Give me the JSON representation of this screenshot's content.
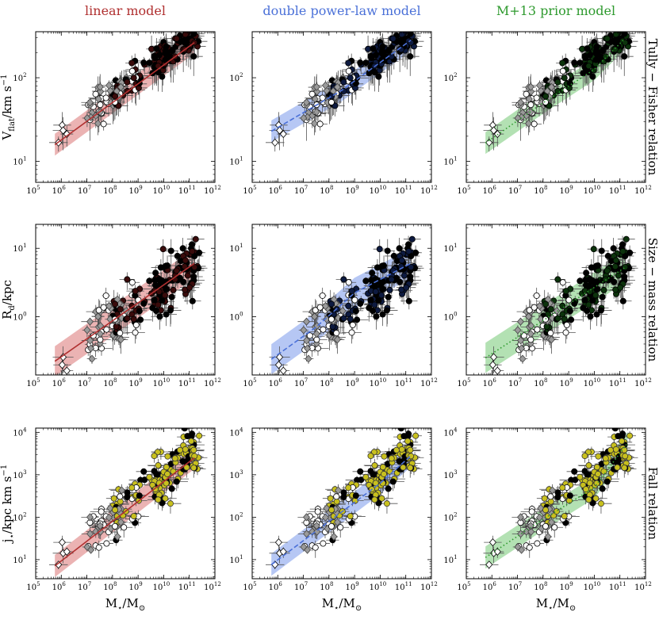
{
  "columns": [
    {
      "title": "linear model",
      "color": "#b03030",
      "band": "#e8a6a6",
      "line_style": "solid"
    },
    {
      "title": "double power-law model",
      "color": "#4a70d8",
      "band": "#a9bdf2",
      "line_style": "dashed"
    },
    {
      "title": "M+13 prior model",
      "color": "#2e9a2e",
      "band": "#a6dca6",
      "line_style": "dotted"
    }
  ],
  "rows": [
    {
      "label": "Tully − Fisher  relation",
      "ylabel": "V",
      "ylabel_sub": "flat",
      "ylabel_rest": "/km s",
      "ylabel_sup": "−1",
      "ylog_range": [
        0.75,
        2.55
      ],
      "ymajor": [
        1,
        2
      ],
      "fill_overlay": ""
    },
    {
      "label": "Size − mass  relation",
      "ylabel": "R",
      "ylabel_sub": "d",
      "ylabel_rest": "/kpc",
      "ylabel_sup": "",
      "ylog_range": [
        -0.85,
        1.35
      ],
      "ymajor": [
        0,
        1
      ],
      "fill_overlay": ""
    },
    {
      "label": "Fall  relation",
      "ylabel": "j",
      "ylabel_sub": "⋆",
      "ylabel_rest": "/kpc km s",
      "ylabel_sup": "−1",
      "ylog_range": [
        0.55,
        4.1
      ],
      "ymajor": [
        1,
        2,
        3,
        4
      ],
      "fill_overlay": "#c8c01e"
    }
  ],
  "xlabel": {
    "main": "M",
    "sub": "⋆",
    "rest": "/M",
    "sub2": "⊙"
  },
  "chart_data": {
    "type": "scatter",
    "x_scale": "log",
    "x_range": [
      100000,
      1000000000000
    ],
    "x_ticks": [
      "10",
      "10",
      "10",
      "10",
      "10",
      "10",
      "10",
      "10"
    ],
    "x_tick_exponents": [
      "5",
      "6",
      "7",
      "8",
      "9",
      "10",
      "11",
      "12"
    ],
    "y_tick_base": "10",
    "y_tick_exponents": {
      "tully_fisher": [
        "1",
        "2"
      ],
      "size_mass": [
        "0",
        "1"
      ],
      "fall": [
        "1",
        "2",
        "3",
        "4"
      ]
    },
    "fits": {
      "tully_fisher": {
        "linear": [
          [
            5.75,
            1.2
          ],
          [
            11.2,
            2.42
          ]
        ],
        "double_power_law": [
          [
            5.75,
            1.36
          ],
          [
            8.5,
            1.85
          ],
          [
            11.2,
            2.45
          ]
        ],
        "m13_prior": [
          [
            5.75,
            1.22
          ],
          [
            8,
            1.7
          ],
          [
            10,
            2.1
          ],
          [
            11.2,
            2.47
          ]
        ]
      },
      "size_mass": {
        "linear": [
          [
            5.75,
            -0.65
          ],
          [
            11.2,
            0.78
          ]
        ],
        "double_power_law": [
          [
            5.75,
            -0.62
          ],
          [
            7.5,
            -0.15
          ],
          [
            9,
            0.35
          ],
          [
            11.2,
            0.78
          ]
        ],
        "m13_prior": [
          [
            5.75,
            -0.6
          ],
          [
            11.2,
            0.72
          ]
        ]
      },
      "fall": {
        "linear": [
          [
            5.75,
            0.85
          ],
          [
            11.2,
            3.4
          ]
        ],
        "double_power_law": [
          [
            5.75,
            0.88
          ],
          [
            8,
            1.9
          ],
          [
            10,
            2.8
          ],
          [
            11.2,
            3.45
          ]
        ],
        "m13_prior": [
          [
            5.75,
            1.05
          ],
          [
            8,
            1.95
          ],
          [
            10,
            2.7
          ],
          [
            11.3,
            3.75
          ]
        ]
      }
    },
    "marker_legend": "black/yellow filled circles, white circles, grey diamonds, white diamonds"
  }
}
